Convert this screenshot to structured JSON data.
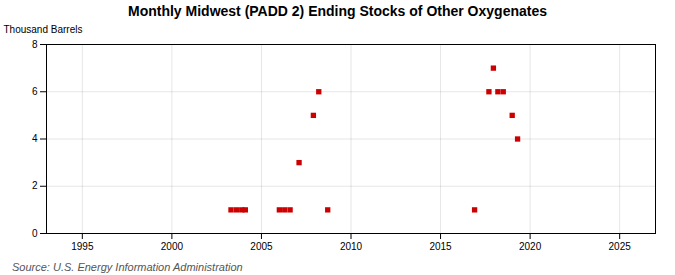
{
  "chart_data": {
    "type": "scatter",
    "title": "Monthly Midwest (PADD 2) Ending Stocks of Other Oxygenates",
    "ylabel": "Thousand Barrels",
    "caption": "Source: U.S. Energy Information Administration",
    "x": [
      2003.3,
      2003.6,
      2003.9,
      2004.1,
      2006.0,
      2006.3,
      2006.6,
      2007.1,
      2007.9,
      2008.2,
      2008.7,
      2016.9,
      2017.7,
      2017.95,
      2018.2,
      2018.5,
      2019.0,
      2019.3
    ],
    "values": [
      1,
      1,
      1,
      1,
      1,
      1,
      1,
      3,
      5,
      6,
      1,
      1,
      6,
      7,
      6,
      6,
      5,
      4
    ],
    "color": "#cc0000",
    "marker": "square",
    "xlim": [
      1993,
      2027
    ],
    "ylim": [
      0,
      8
    ],
    "xticks": [
      1995,
      2000,
      2005,
      2010,
      2015,
      2020,
      2025
    ],
    "yticks": [
      0,
      2,
      4,
      6,
      8
    ],
    "grid": true
  }
}
